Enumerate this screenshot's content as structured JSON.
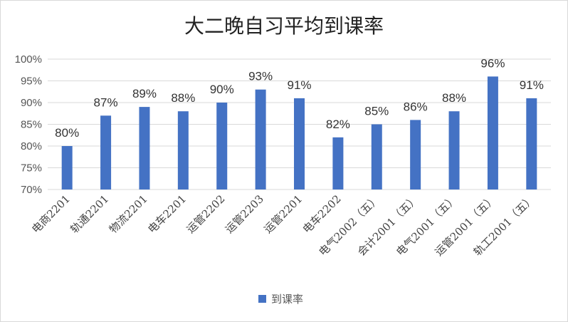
{
  "chart_data": {
    "type": "bar",
    "title": "大二晚自习平均到课率",
    "categories": [
      "电商2201",
      "轨通2201",
      "物流2201",
      "电车2201",
      "运管2202",
      "运管2203",
      "运管2201",
      "电车2202",
      "电气2002（五）",
      "会计2001（五）",
      "电气2001（五）",
      "运管2001（五）",
      "轨工2001（五）"
    ],
    "series": [
      {
        "name": "到课率",
        "values": [
          80,
          87,
          89,
          88,
          90,
          93,
          91,
          82,
          85,
          86,
          88,
          96,
          91
        ],
        "labels": [
          "80%",
          "87%",
          "89%",
          "88%",
          "90%",
          "93%",
          "91%",
          "82%",
          "85%",
          "86%",
          "88%",
          "96%",
          "91%"
        ]
      }
    ],
    "ylim": [
      70,
      100
    ],
    "yticks": [
      70,
      75,
      80,
      85,
      90,
      95,
      100
    ],
    "ytick_labels": [
      "70%",
      "75%",
      "80%",
      "85%",
      "90%",
      "95%",
      "100%"
    ],
    "grid": true,
    "legend_position": "bottom",
    "bar_color": "#4472c4",
    "grid_color": "#d9d9d9"
  }
}
